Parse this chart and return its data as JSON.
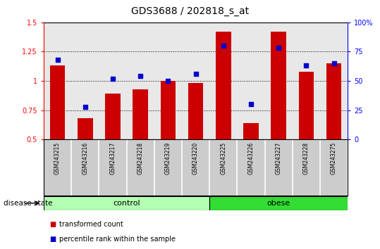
{
  "title": "GDS3688 / 202818_s_at",
  "samples": [
    "GSM243215",
    "GSM243216",
    "GSM243217",
    "GSM243218",
    "GSM243219",
    "GSM243220",
    "GSM243225",
    "GSM243226",
    "GSM243227",
    "GSM243228",
    "GSM243275"
  ],
  "transformed_count": [
    1.13,
    0.68,
    0.89,
    0.93,
    1.0,
    0.98,
    1.42,
    0.64,
    1.42,
    1.08,
    1.15
  ],
  "percentile_rank": [
    68,
    28,
    52,
    54,
    50,
    56,
    80,
    30,
    78,
    63,
    65
  ],
  "groups": [
    {
      "label": "control",
      "start": 0,
      "end": 6,
      "color": "#b3ffb3"
    },
    {
      "label": "obese",
      "start": 6,
      "end": 11,
      "color": "#33dd33"
    }
  ],
  "ylim_left": [
    0.5,
    1.5
  ],
  "ylim_right": [
    0,
    100
  ],
  "yticks_left": [
    0.5,
    0.75,
    1.0,
    1.25,
    1.5
  ],
  "yticks_right": [
    0,
    25,
    50,
    75,
    100
  ],
  "ytick_labels_left": [
    "0.5",
    "0.75",
    "1",
    "1.25",
    "1.5"
  ],
  "ytick_labels_right": [
    "0",
    "25",
    "50",
    "75",
    "100%"
  ],
  "bar_color": "#cc0000",
  "dot_color": "#0000cc",
  "bg_color": "#cccccc",
  "plot_bg": "#e8e8e8",
  "legend_items": [
    {
      "label": "transformed count",
      "color": "#cc0000"
    },
    {
      "label": "percentile rank within the sample",
      "color": "#0000cc"
    }
  ],
  "disease_state_label": "disease state"
}
